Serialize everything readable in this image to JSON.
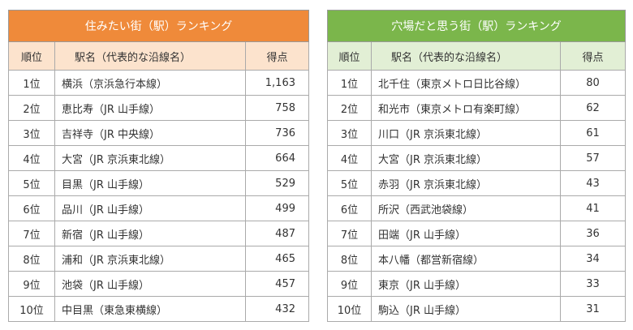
{
  "tables": [
    {
      "title": "住みたい街（駅）ランキング",
      "headers": [
        "順位",
        "駅名（代表的な沿線名）",
        "得点"
      ],
      "rows": [
        [
          "1位",
          "横浜（京浜急行本線）",
          "1,163"
        ],
        [
          "2位",
          "恵比寿（JR 山手線）",
          "758"
        ],
        [
          "3位",
          "吉祥寺（JR 中央線）",
          "736"
        ],
        [
          "4位",
          "大宮（JR 京浜東北線）",
          "664"
        ],
        [
          "5位",
          "目黒（JR 山手線）",
          "529"
        ],
        [
          "6位",
          "品川（JR 山手線）",
          "499"
        ],
        [
          "7位",
          "新宿（JR 山手線）",
          "487"
        ],
        [
          "8位",
          "浦和（JR 京浜東北線）",
          "465"
        ],
        [
          "9位",
          "池袋（JR 山手線）",
          "457"
        ],
        [
          "10位",
          "中目黒（東急東横線）",
          "432"
        ]
      ]
    },
    {
      "title": "穴場だと思う街（駅）ランキング",
      "headers": [
        "順位",
        "駅名（代表的な沿線名）",
        "得点"
      ],
      "rows": [
        [
          "1位",
          "北千住（東京メトロ日比谷線）",
          "80"
        ],
        [
          "2位",
          "和光市（東京メトロ有楽町線）",
          "62"
        ],
        [
          "3位",
          "川口（JR 京浜東北線）",
          "61"
        ],
        [
          "4位",
          "大宮（JR 京浜東北線）",
          "57"
        ],
        [
          "5位",
          "赤羽（JR 京浜東北線）",
          "43"
        ],
        [
          "6位",
          "所沢（西武池袋線）",
          "41"
        ],
        [
          "7位",
          "田端（JR 山手線）",
          "36"
        ],
        [
          "8位",
          "本八幡（都営新宿線）",
          "34"
        ],
        [
          "9位",
          "東京（JR 山手線）",
          "33"
        ],
        [
          "10位",
          "駒込（JR 山手線）",
          "31"
        ]
      ]
    }
  ]
}
